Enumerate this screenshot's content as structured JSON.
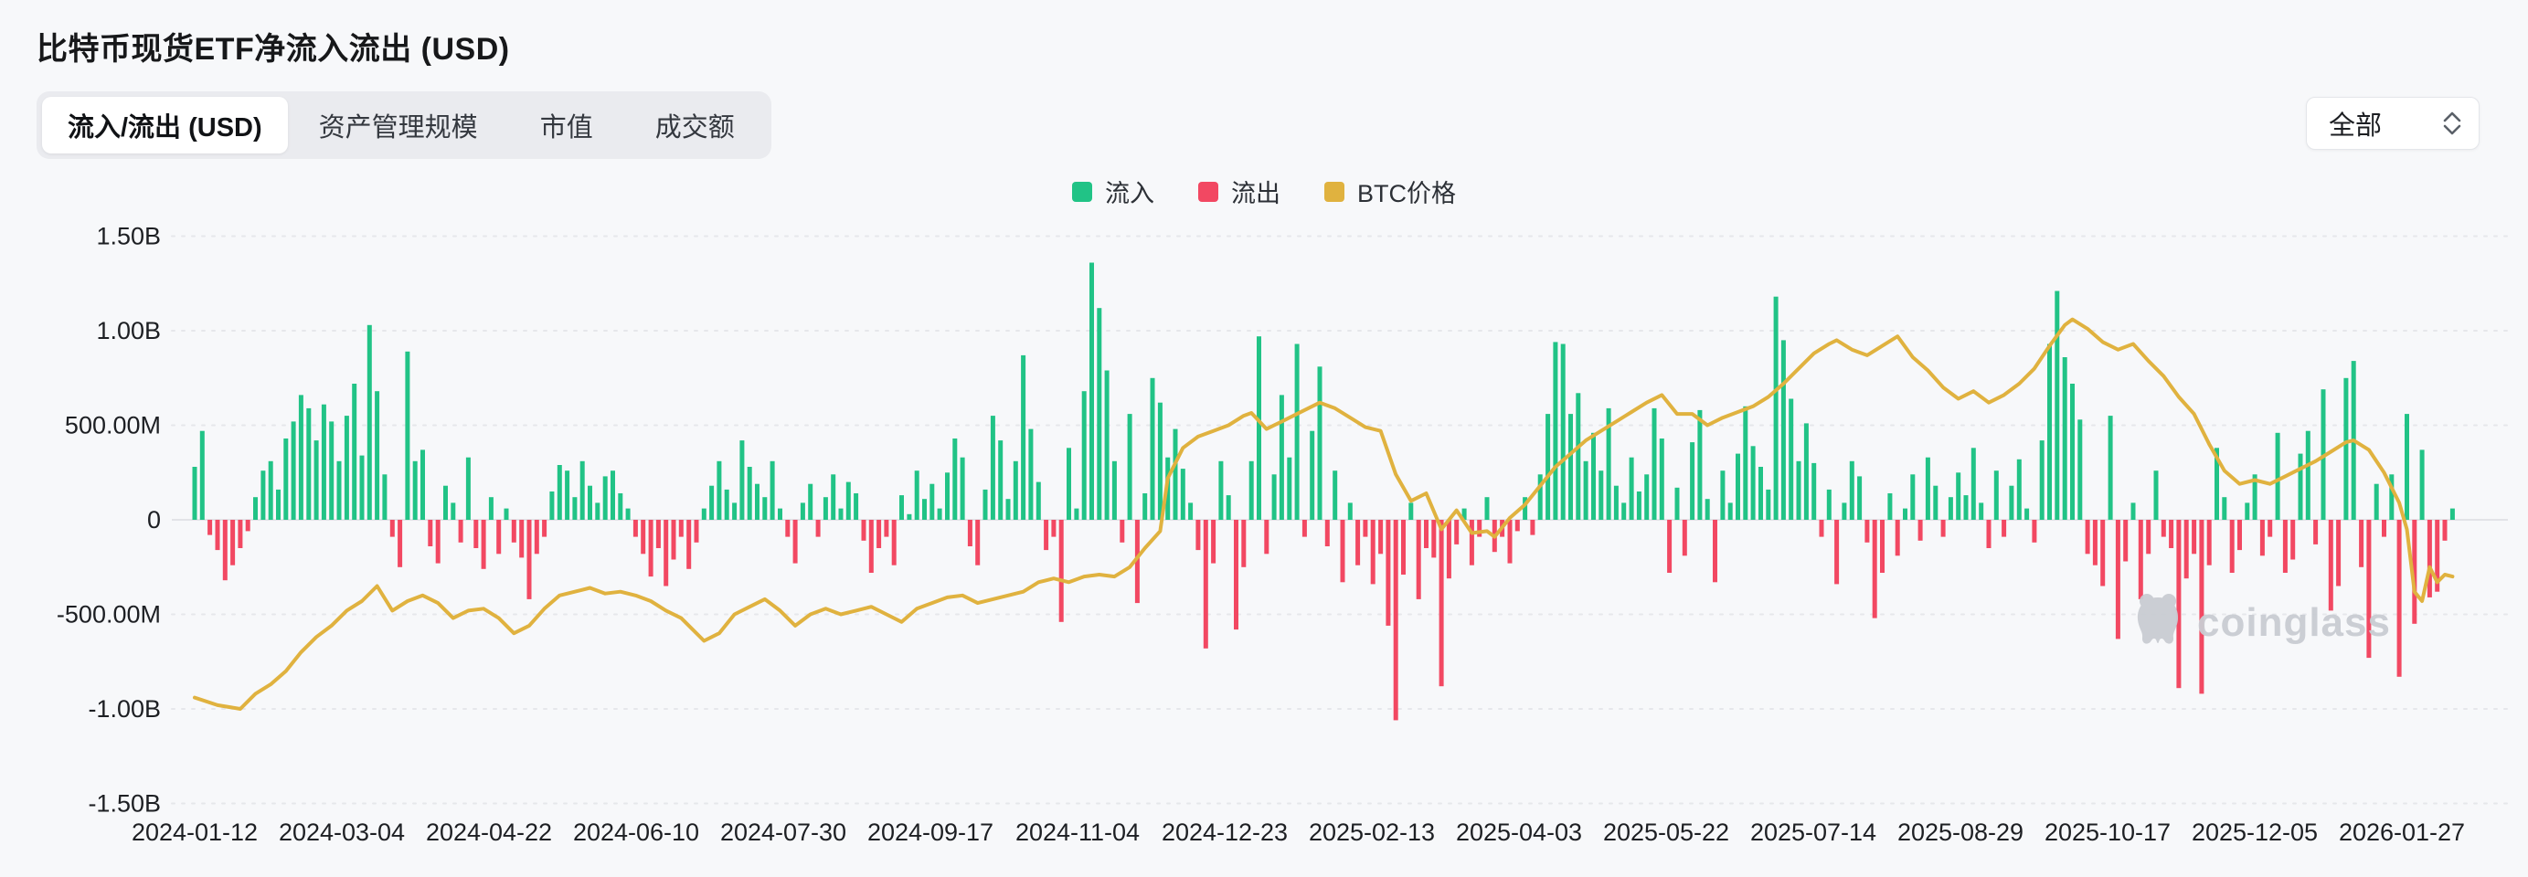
{
  "page": {
    "title": "比特币现货ETF净流入流出 (USD)",
    "background": "#f7f8fa"
  },
  "tabs": {
    "items": [
      {
        "label": "流入/流出 (USD)",
        "active": true
      },
      {
        "label": "资产管理规模",
        "active": false
      },
      {
        "label": "市值",
        "active": false
      },
      {
        "label": "成交额",
        "active": false
      }
    ]
  },
  "dropdown": {
    "value": "全部"
  },
  "legend": {
    "items": [
      {
        "label": "流入",
        "color": "#21c386"
      },
      {
        "label": "流出",
        "color": "#f24862"
      },
      {
        "label": "BTC价格",
        "color": "#e0b23f"
      }
    ]
  },
  "watermark": {
    "text": "coinglass"
  },
  "chart_data": {
    "type": "bar+line",
    "title": "比特币现货ETF净流入流出 (USD)",
    "unit_note": "bar values in millions USD (netflow); line is BTC price overlay mapped to left axis",
    "legend_position": "top-center",
    "grid": "horizontal dashed",
    "y_axis": {
      "ylim_millions": [
        -1500,
        1500
      ],
      "ticks": [
        {
          "label": "1.50B",
          "value": 1500
        },
        {
          "label": "1.00B",
          "value": 1000
        },
        {
          "label": "500.00M",
          "value": 500
        },
        {
          "label": "0",
          "value": 0
        },
        {
          "label": "-500.00M",
          "value": -500
        },
        {
          "label": "-1.00B",
          "value": -1000
        },
        {
          "label": "-1.50B",
          "value": -1500
        }
      ]
    },
    "x_axis": {
      "labels": [
        "2024-01-12",
        "2024-03-04",
        "2024-04-22",
        "2024-06-10",
        "2024-07-30",
        "2024-09-17",
        "2024-11-04",
        "2024-12-23",
        "2025-02-13",
        "2025-04-03",
        "2025-05-22",
        "2025-07-14",
        "2025-08-29",
        "2025-10-17",
        "2025-12-05",
        "2026-01-27"
      ]
    },
    "series": [
      {
        "name": "流入",
        "type": "bar",
        "color": "#21c386",
        "role": "positive-netflow"
      },
      {
        "name": "流出",
        "type": "bar",
        "color": "#f24862",
        "role": "negative-netflow"
      },
      {
        "name": "BTC价格",
        "type": "line",
        "color": "#e0b23f"
      }
    ],
    "netflow_millions": [
      280,
      470,
      -80,
      -160,
      -320,
      -240,
      -150,
      -60,
      120,
      260,
      310,
      160,
      430,
      520,
      660,
      590,
      420,
      610,
      520,
      310,
      550,
      720,
      340,
      1030,
      680,
      240,
      -90,
      -250,
      890,
      310,
      370,
      -140,
      -230,
      180,
      90,
      -120,
      330,
      -150,
      -260,
      120,
      -180,
      60,
      -120,
      -200,
      -420,
      -180,
      -90,
      150,
      290,
      260,
      120,
      310,
      180,
      90,
      230,
      260,
      140,
      60,
      -90,
      -180,
      -300,
      -150,
      -350,
      -210,
      -90,
      -260,
      -120,
      60,
      180,
      310,
      160,
      90,
      420,
      280,
      190,
      120,
      310,
      60,
      -90,
      -230,
      90,
      190,
      -90,
      120,
      240,
      60,
      200,
      140,
      -110,
      -280,
      -150,
      -90,
      -240,
      130,
      30,
      260,
      110,
      190,
      60,
      250,
      430,
      330,
      -140,
      -240,
      160,
      550,
      420,
      110,
      310,
      870,
      480,
      200,
      -160,
      -90,
      -540,
      380,
      60,
      680,
      1360,
      1120,
      790,
      310,
      -120,
      560,
      -440,
      140,
      750,
      620,
      330,
      480,
      270,
      90,
      -160,
      -680,
      -230,
      310,
      130,
      -580,
      -250,
      310,
      970,
      -180,
      240,
      660,
      330,
      930,
      -90,
      470,
      810,
      -140,
      260,
      -330,
      90,
      -240,
      -90,
      -340,
      -180,
      -560,
      -1060,
      -290,
      90,
      -420,
      -150,
      -200,
      -880,
      -310,
      -130,
      60,
      -240,
      -90,
      120,
      -170,
      -90,
      -230,
      -60,
      120,
      -80,
      240,
      560,
      940,
      930,
      560,
      670,
      310,
      460,
      260,
      590,
      180,
      90,
      330,
      150,
      240,
      590,
      430,
      -280,
      170,
      -190,
      410,
      580,
      110,
      -330,
      260,
      90,
      350,
      600,
      390,
      280,
      160,
      1180,
      950,
      640,
      310,
      510,
      300,
      -90,
      160,
      -340,
      90,
      310,
      230,
      -120,
      -520,
      -280,
      140,
      -190,
      60,
      240,
      -110,
      330,
      180,
      -90,
      120,
      250,
      130,
      380,
      90,
      -150,
      260,
      -90,
      180,
      320,
      60,
      -120,
      420,
      930,
      1210,
      860,
      720,
      530,
      -180,
      -240,
      -350,
      550,
      -630,
      -220,
      90,
      -420,
      -180,
      260,
      -90,
      -150,
      -890,
      -310,
      -180,
      -920,
      -240,
      380,
      120,
      -280,
      -160,
      90,
      240,
      -190,
      -90,
      460,
      -280,
      -210,
      350,
      470,
      -130,
      690,
      -480,
      -350,
      750,
      840,
      -250,
      -730,
      190,
      -90,
      240,
      -830,
      560,
      -550,
      370,
      -410,
      -380,
      -110,
      60,
      0,
      0
    ],
    "btc_price_line": [
      [
        0,
        -940
      ],
      [
        3,
        -980
      ],
      [
        6,
        -1000
      ],
      [
        8,
        -920
      ],
      [
        10,
        -870
      ],
      [
        12,
        -800
      ],
      [
        14,
        -700
      ],
      [
        16,
        -620
      ],
      [
        18,
        -560
      ],
      [
        20,
        -480
      ],
      [
        22,
        -430
      ],
      [
        24,
        -350
      ],
      [
        26,
        -480
      ],
      [
        28,
        -430
      ],
      [
        30,
        -400
      ],
      [
        32,
        -440
      ],
      [
        34,
        -520
      ],
      [
        36,
        -480
      ],
      [
        38,
        -470
      ],
      [
        40,
        -520
      ],
      [
        42,
        -600
      ],
      [
        44,
        -560
      ],
      [
        46,
        -470
      ],
      [
        48,
        -400
      ],
      [
        50,
        -380
      ],
      [
        52,
        -360
      ],
      [
        54,
        -390
      ],
      [
        56,
        -380
      ],
      [
        58,
        -400
      ],
      [
        60,
        -430
      ],
      [
        62,
        -480
      ],
      [
        64,
        -520
      ],
      [
        67,
        -640
      ],
      [
        69,
        -600
      ],
      [
        71,
        -500
      ],
      [
        73,
        -460
      ],
      [
        75,
        -420
      ],
      [
        77,
        -480
      ],
      [
        79,
        -560
      ],
      [
        81,
        -500
      ],
      [
        83,
        -470
      ],
      [
        85,
        -500
      ],
      [
        87,
        -480
      ],
      [
        89,
        -460
      ],
      [
        91,
        -500
      ],
      [
        93,
        -540
      ],
      [
        95,
        -470
      ],
      [
        97,
        -440
      ],
      [
        99,
        -410
      ],
      [
        101,
        -400
      ],
      [
        103,
        -440
      ],
      [
        105,
        -420
      ],
      [
        107,
        -400
      ],
      [
        109,
        -380
      ],
      [
        111,
        -330
      ],
      [
        113,
        -310
      ],
      [
        115,
        -330
      ],
      [
        117,
        -300
      ],
      [
        119,
        -290
      ],
      [
        121,
        -300
      ],
      [
        123,
        -250
      ],
      [
        125,
        -150
      ],
      [
        127,
        -60
      ],
      [
        128,
        220
      ],
      [
        130,
        380
      ],
      [
        132,
        440
      ],
      [
        134,
        470
      ],
      [
        136,
        500
      ],
      [
        138,
        550
      ],
      [
        139,
        565
      ],
      [
        141,
        480
      ],
      [
        143,
        520
      ],
      [
        145,
        560
      ],
      [
        147,
        600
      ],
      [
        148,
        620
      ],
      [
        150,
        590
      ],
      [
        152,
        540
      ],
      [
        154,
        490
      ],
      [
        156,
        470
      ],
      [
        158,
        240
      ],
      [
        160,
        100
      ],
      [
        162,
        140
      ],
      [
        164,
        -50
      ],
      [
        166,
        50
      ],
      [
        168,
        -70
      ],
      [
        170,
        -60
      ],
      [
        171,
        -90
      ],
      [
        173,
        10
      ],
      [
        175,
        80
      ],
      [
        177,
        180
      ],
      [
        179,
        280
      ],
      [
        181,
        350
      ],
      [
        183,
        420
      ],
      [
        185,
        470
      ],
      [
        187,
        520
      ],
      [
        189,
        570
      ],
      [
        191,
        620
      ],
      [
        193,
        660
      ],
      [
        195,
        560
      ],
      [
        197,
        560
      ],
      [
        199,
        500
      ],
      [
        201,
        540
      ],
      [
        203,
        570
      ],
      [
        205,
        600
      ],
      [
        207,
        650
      ],
      [
        209,
        720
      ],
      [
        211,
        800
      ],
      [
        213,
        880
      ],
      [
        215,
        930
      ],
      [
        216,
        950
      ],
      [
        218,
        900
      ],
      [
        220,
        870
      ],
      [
        222,
        920
      ],
      [
        224,
        970
      ],
      [
        226,
        860
      ],
      [
        228,
        790
      ],
      [
        230,
        700
      ],
      [
        232,
        640
      ],
      [
        234,
        680
      ],
      [
        236,
        620
      ],
      [
        238,
        660
      ],
      [
        240,
        720
      ],
      [
        242,
        800
      ],
      [
        244,
        920
      ],
      [
        246,
        1030
      ],
      [
        247,
        1060
      ],
      [
        249,
        1010
      ],
      [
        251,
        940
      ],
      [
        253,
        900
      ],
      [
        255,
        930
      ],
      [
        257,
        840
      ],
      [
        259,
        760
      ],
      [
        261,
        650
      ],
      [
        263,
        560
      ],
      [
        265,
        400
      ],
      [
        267,
        260
      ],
      [
        269,
        190
      ],
      [
        271,
        210
      ],
      [
        273,
        190
      ],
      [
        275,
        230
      ],
      [
        277,
        270
      ],
      [
        279,
        310
      ],
      [
        281,
        360
      ],
      [
        283,
        410
      ],
      [
        284,
        420
      ],
      [
        286,
        370
      ],
      [
        288,
        250
      ],
      [
        290,
        90
      ],
      [
        291,
        -50
      ],
      [
        292,
        -380
      ],
      [
        293,
        -430
      ],
      [
        294,
        -250
      ],
      [
        295,
        -330
      ],
      [
        296,
        -290
      ],
      [
        297,
        -300
      ]
    ]
  }
}
